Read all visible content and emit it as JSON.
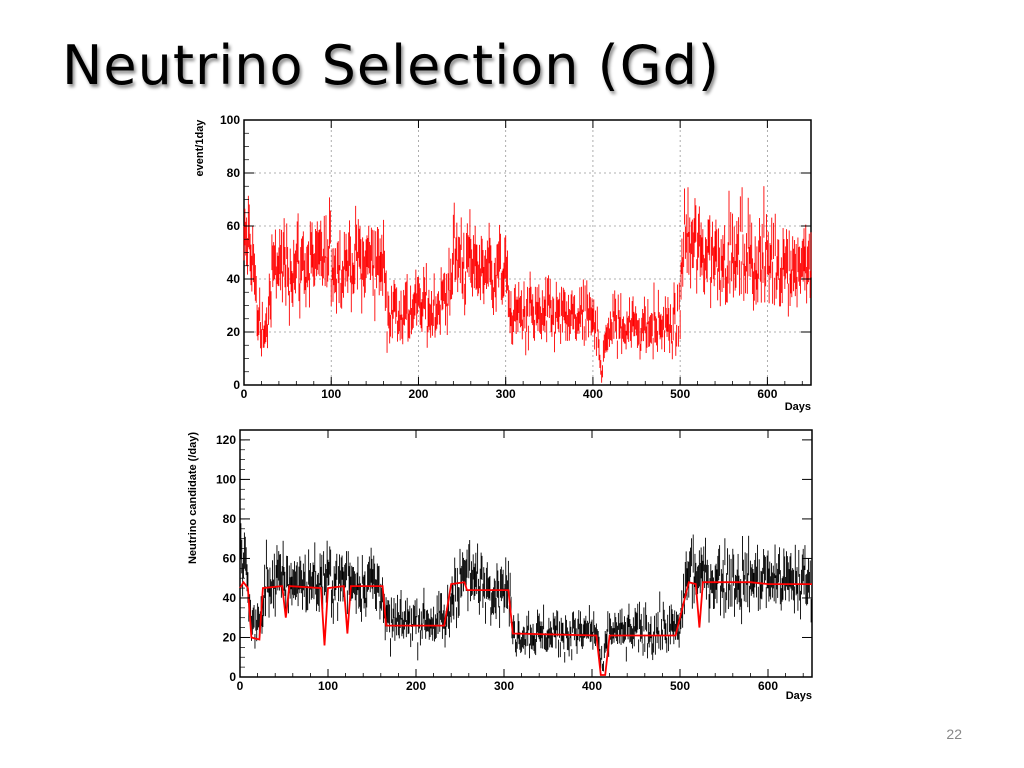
{
  "slide": {
    "title": "Neutrino Selection (Gd)",
    "page_number": "22"
  },
  "chart_data": [
    {
      "type": "line",
      "title": "",
      "xlabel": "Days",
      "ylabel": "event/1day",
      "xlim": [
        0,
        650
      ],
      "ylim": [
        0,
        100
      ],
      "x_ticks": [
        0,
        100,
        200,
        300,
        400,
        500,
        600
      ],
      "y_ticks": [
        0,
        20,
        40,
        60,
        80,
        100
      ],
      "grid": true,
      "colors": {
        "data": "#ff0000"
      },
      "series": [
        {
          "style": "error-bars",
          "color": "#ff0000",
          "x_range": [
            0,
            650
          ],
          "trend": [
            {
              "x": 0,
              "y": 45
            },
            {
              "x": 5,
              "y": 58
            },
            {
              "x": 10,
              "y": 50
            },
            {
              "x": 15,
              "y": 25
            },
            {
              "x": 25,
              "y": 20
            },
            {
              "x": 35,
              "y": 45
            },
            {
              "x": 160,
              "y": 47
            },
            {
              "x": 165,
              "y": 28
            },
            {
              "x": 230,
              "y": 30
            },
            {
              "x": 240,
              "y": 48
            },
            {
              "x": 300,
              "y": 42
            },
            {
              "x": 305,
              "y": 27
            },
            {
              "x": 405,
              "y": 23
            },
            {
              "x": 410,
              "y": 5
            },
            {
              "x": 418,
              "y": 22
            },
            {
              "x": 498,
              "y": 22
            },
            {
              "x": 505,
              "y": 55
            },
            {
              "x": 520,
              "y": 50
            },
            {
              "x": 650,
              "y": 45
            }
          ]
        }
      ]
    },
    {
      "type": "line",
      "title": "",
      "xlabel": "Days",
      "ylabel": "Neutrino candidate (/day)",
      "xlim": [
        0,
        650
      ],
      "ylim": [
        0,
        125
      ],
      "x_ticks": [
        0,
        100,
        200,
        300,
        400,
        500,
        600
      ],
      "y_ticks": [
        0,
        20,
        40,
        60,
        80,
        100,
        120
      ],
      "grid": false,
      "colors": {
        "data": "#000000",
        "prediction": "#ff0000"
      },
      "series": [
        {
          "style": "error-bars",
          "color": "#000000",
          "trend": [
            {
              "x": 0,
              "y": 55
            },
            {
              "x": 5,
              "y": 62
            },
            {
              "x": 12,
              "y": 30
            },
            {
              "x": 22,
              "y": 25
            },
            {
              "x": 30,
              "y": 48
            },
            {
              "x": 160,
              "y": 48
            },
            {
              "x": 165,
              "y": 27
            },
            {
              "x": 235,
              "y": 28
            },
            {
              "x": 245,
              "y": 50
            },
            {
              "x": 305,
              "y": 45
            },
            {
              "x": 310,
              "y": 22
            },
            {
              "x": 405,
              "y": 22
            },
            {
              "x": 412,
              "y": 3
            },
            {
              "x": 418,
              "y": 22
            },
            {
              "x": 500,
              "y": 24
            },
            {
              "x": 508,
              "y": 55
            },
            {
              "x": 520,
              "y": 50
            },
            {
              "x": 650,
              "y": 48
            }
          ]
        },
        {
          "style": "line",
          "color": "#ff0000",
          "points": [
            {
              "x": 0,
              "y": 45
            },
            {
              "x": 4,
              "y": 48
            },
            {
              "x": 9,
              "y": 45
            },
            {
              "x": 13,
              "y": 20
            },
            {
              "x": 22,
              "y": 19
            },
            {
              "x": 26,
              "y": 45
            },
            {
              "x": 48,
              "y": 46
            },
            {
              "x": 52,
              "y": 30
            },
            {
              "x": 56,
              "y": 46
            },
            {
              "x": 92,
              "y": 45
            },
            {
              "x": 96,
              "y": 16
            },
            {
              "x": 100,
              "y": 45
            },
            {
              "x": 118,
              "y": 46
            },
            {
              "x": 122,
              "y": 22
            },
            {
              "x": 126,
              "y": 46
            },
            {
              "x": 162,
              "y": 46
            },
            {
              "x": 166,
              "y": 26
            },
            {
              "x": 232,
              "y": 26
            },
            {
              "x": 240,
              "y": 47
            },
            {
              "x": 255,
              "y": 48
            },
            {
              "x": 258,
              "y": 44
            },
            {
              "x": 305,
              "y": 44
            },
            {
              "x": 310,
              "y": 22
            },
            {
              "x": 405,
              "y": 21
            },
            {
              "x": 410,
              "y": 1
            },
            {
              "x": 415,
              "y": 1
            },
            {
              "x": 420,
              "y": 21
            },
            {
              "x": 495,
              "y": 21
            },
            {
              "x": 510,
              "y": 48
            },
            {
              "x": 518,
              "y": 47
            },
            {
              "x": 522,
              "y": 25
            },
            {
              "x": 526,
              "y": 48
            },
            {
              "x": 580,
              "y": 48
            },
            {
              "x": 600,
              "y": 47
            },
            {
              "x": 650,
              "y": 47
            }
          ]
        }
      ]
    }
  ]
}
